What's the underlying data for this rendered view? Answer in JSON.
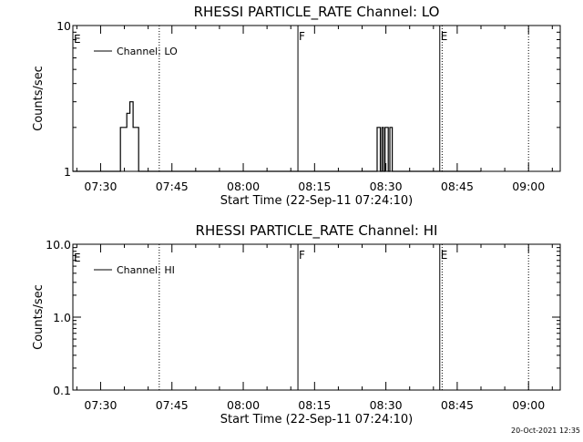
{
  "footer_timestamp": "20-Oct-2021 12:35",
  "chart_data": [
    {
      "type": "line",
      "title": "RHESSI PARTICLE_RATE Channel: LO",
      "xlabel": "Start Time (22-Sep-11 07:24:10)",
      "ylabel": "Counts/sec",
      "y_scale": "log",
      "ylim": [
        1,
        10
      ],
      "y_ticks": [
        {
          "v": 1,
          "label": "1"
        },
        {
          "v": 10,
          "label": "10"
        }
      ],
      "xlim": [
        "07:24:10",
        "09:06:40"
      ],
      "x_ticks": [
        "07:30",
        "07:45",
        "08:00",
        "08:15",
        "08:30",
        "08:45",
        "09:00"
      ],
      "legend": {
        "position": "top-left",
        "entries": [
          "Channel: LO"
        ]
      },
      "series": [
        {
          "name": "Channel: LO",
          "color": "#000000",
          "x": [
            "07:24:10",
            "07:33:50",
            "07:34:10",
            "07:35:10",
            "07:35:30",
            "07:35:50",
            "07:36:10",
            "07:36:30",
            "07:36:50",
            "07:37:10",
            "07:38:00",
            "08:27:30",
            "08:28:10",
            "08:28:30",
            "08:28:50",
            "08:29:10",
            "08:29:30",
            "08:29:50",
            "08:30:10",
            "08:30:30",
            "08:30:50",
            "08:31:20",
            "08:50:00"
          ],
          "y": [
            1,
            1,
            2,
            2,
            2.5,
            2.5,
            3,
            3,
            2,
            2,
            1,
            1,
            2,
            2,
            1,
            2,
            1,
            2,
            2,
            1,
            2,
            1,
            1
          ]
        }
      ],
      "vlines": [
        {
          "time": "07:42:20",
          "style": "dotted"
        },
        {
          "time": "08:11:30",
          "style": "solid",
          "label": "F"
        },
        {
          "time": "08:41:20",
          "style": "solid",
          "label": "E"
        },
        {
          "time": "08:41:50",
          "style": "dotted"
        },
        {
          "time": "09:00:00",
          "style": "dotted"
        }
      ],
      "start_flag": "E"
    },
    {
      "type": "line",
      "title": "RHESSI PARTICLE_RATE Channel: HI",
      "xlabel": "Start Time (22-Sep-11 07:24:10)",
      "ylabel": "Counts/sec",
      "y_scale": "log",
      "ylim": [
        0.1,
        10
      ],
      "y_ticks": [
        {
          "v": 0.1,
          "label": "0.1"
        },
        {
          "v": 1,
          "label": "1.0"
        },
        {
          "v": 10,
          "label": "10.0"
        }
      ],
      "xlim": [
        "07:24:10",
        "09:06:40"
      ],
      "x_ticks": [
        "07:30",
        "07:45",
        "08:00",
        "08:15",
        "08:30",
        "08:45",
        "09:00"
      ],
      "legend": {
        "position": "top-left",
        "entries": [
          "Channel: HI"
        ]
      },
      "series": [
        {
          "name": "Channel: HI",
          "color": "#000000",
          "x": [],
          "y": []
        }
      ],
      "vlines": [
        {
          "time": "07:42:20",
          "style": "dotted"
        },
        {
          "time": "08:11:30",
          "style": "solid",
          "label": "F"
        },
        {
          "time": "08:41:20",
          "style": "solid",
          "label": "E"
        },
        {
          "time": "08:41:50",
          "style": "dotted"
        },
        {
          "time": "09:00:00",
          "style": "dotted"
        }
      ],
      "start_flag": "E"
    }
  ]
}
